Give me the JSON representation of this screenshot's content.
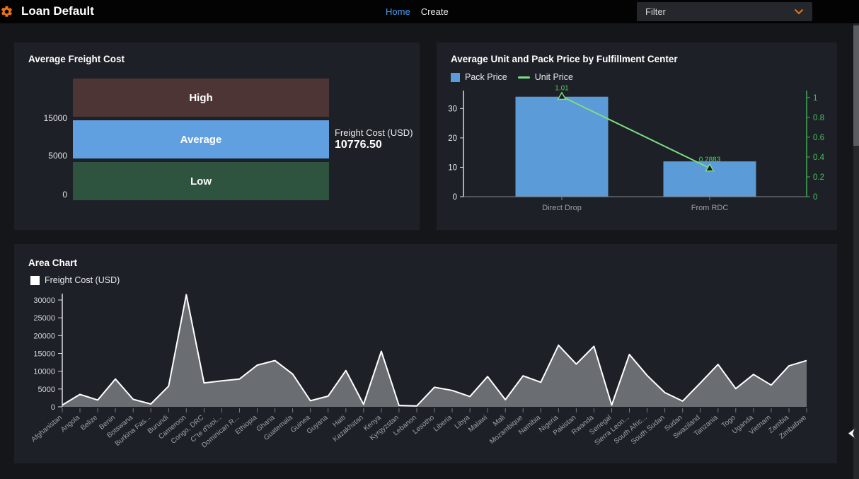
{
  "header": {
    "title": "Loan Default",
    "nav": [
      {
        "label": "Home",
        "active": true
      },
      {
        "label": "Create",
        "active": false
      }
    ],
    "filter": {
      "label": "Filter"
    },
    "colors": {
      "accent_orange": "#e8731a",
      "link_blue": "#4a9df0"
    }
  },
  "chart_data": [
    {
      "id": "average-freight-cost-gauge",
      "type": "gauge",
      "title": "Average Freight Cost",
      "bands": [
        {
          "label": "High",
          "color": "#4e3535"
        },
        {
          "label": "Average",
          "color": "#609fe0"
        },
        {
          "label": "Low",
          "color": "#2e5440"
        }
      ],
      "tick_labels": [
        "15000",
        "5000",
        "0"
      ],
      "value": 10776.5,
      "value_display": "10776.50",
      "value_label": "Freight Cost (USD)"
    },
    {
      "id": "avg-unit-pack-price",
      "type": "bar",
      "title": "Average Unit and Pack Price by Fulfillment Center",
      "categories": [
        "Direct Drop",
        "From RDC"
      ],
      "series": [
        {
          "name": "Pack Price",
          "kind": "bar",
          "axis": "left",
          "color": "#5b9bd8",
          "values": [
            34,
            12
          ]
        },
        {
          "name": "Unit Price",
          "kind": "line",
          "axis": "right",
          "color": "#7ddc84",
          "values": [
            1.01,
            0.2883
          ],
          "labels": [
            "1.01",
            "0.2883"
          ]
        }
      ],
      "left_axis": {
        "ticks": [
          0,
          10,
          20,
          30
        ],
        "max": 36.1,
        "color": "#e8eaec"
      },
      "right_axis": {
        "ticks": [
          0,
          0.2,
          0.4,
          0.6,
          0.8,
          1
        ],
        "max": 1.07,
        "color": "#4cbf5e"
      },
      "legend_position": "top-left"
    },
    {
      "id": "area-chart",
      "type": "area",
      "title": "Area Chart",
      "legend_label": "Freight Cost (USD)",
      "categories": [
        "Afghanistan",
        "Angola",
        "Belize",
        "Benin",
        "Botswana",
        "Burkina Fas...",
        "Burundi",
        "Cameroon",
        "Congo, DRC",
        "C\"te d'Ivoi...",
        "Dominican R...",
        "Ethiopia",
        "Ghana",
        "Guatemala",
        "Guinea",
        "Guyana",
        "Haiti",
        "Kazakhstan",
        "Kenya",
        "Kyrgyzstan",
        "Lebanon",
        "Lesotho",
        "Liberia",
        "Libya",
        "Malawi",
        "Mali",
        "Mozambique",
        "Namibia",
        "Nigeria",
        "Pakistan",
        "Rwanda",
        "Senegal",
        "Sierra Leon...",
        "South Afric...",
        "South Sudan",
        "Sudan",
        "Swaziland",
        "Tanzania",
        "Togo",
        "Uganda",
        "Vietnam",
        "Zambia",
        "Zimbabwe"
      ],
      "values": [
        500,
        3500,
        1900,
        7800,
        2100,
        800,
        5800,
        31500,
        6700,
        7300,
        7800,
        11700,
        13000,
        9200,
        1700,
        3000,
        10200,
        700,
        15600,
        400,
        250,
        5500,
        4600,
        2900,
        8500,
        2000,
        8700,
        6900,
        17300,
        12000,
        17000,
        500,
        14700,
        8800,
        4000,
        1600,
        6700,
        11900,
        5100,
        9100,
        6100,
        11500,
        13000
      ],
      "y_ticks": [
        0,
        5000,
        10000,
        15000,
        20000,
        25000,
        30000
      ],
      "ylim": [
        0,
        31800
      ],
      "fill_color": "#6a6e72",
      "line_color": "#ffffff",
      "grid": false
    }
  ]
}
